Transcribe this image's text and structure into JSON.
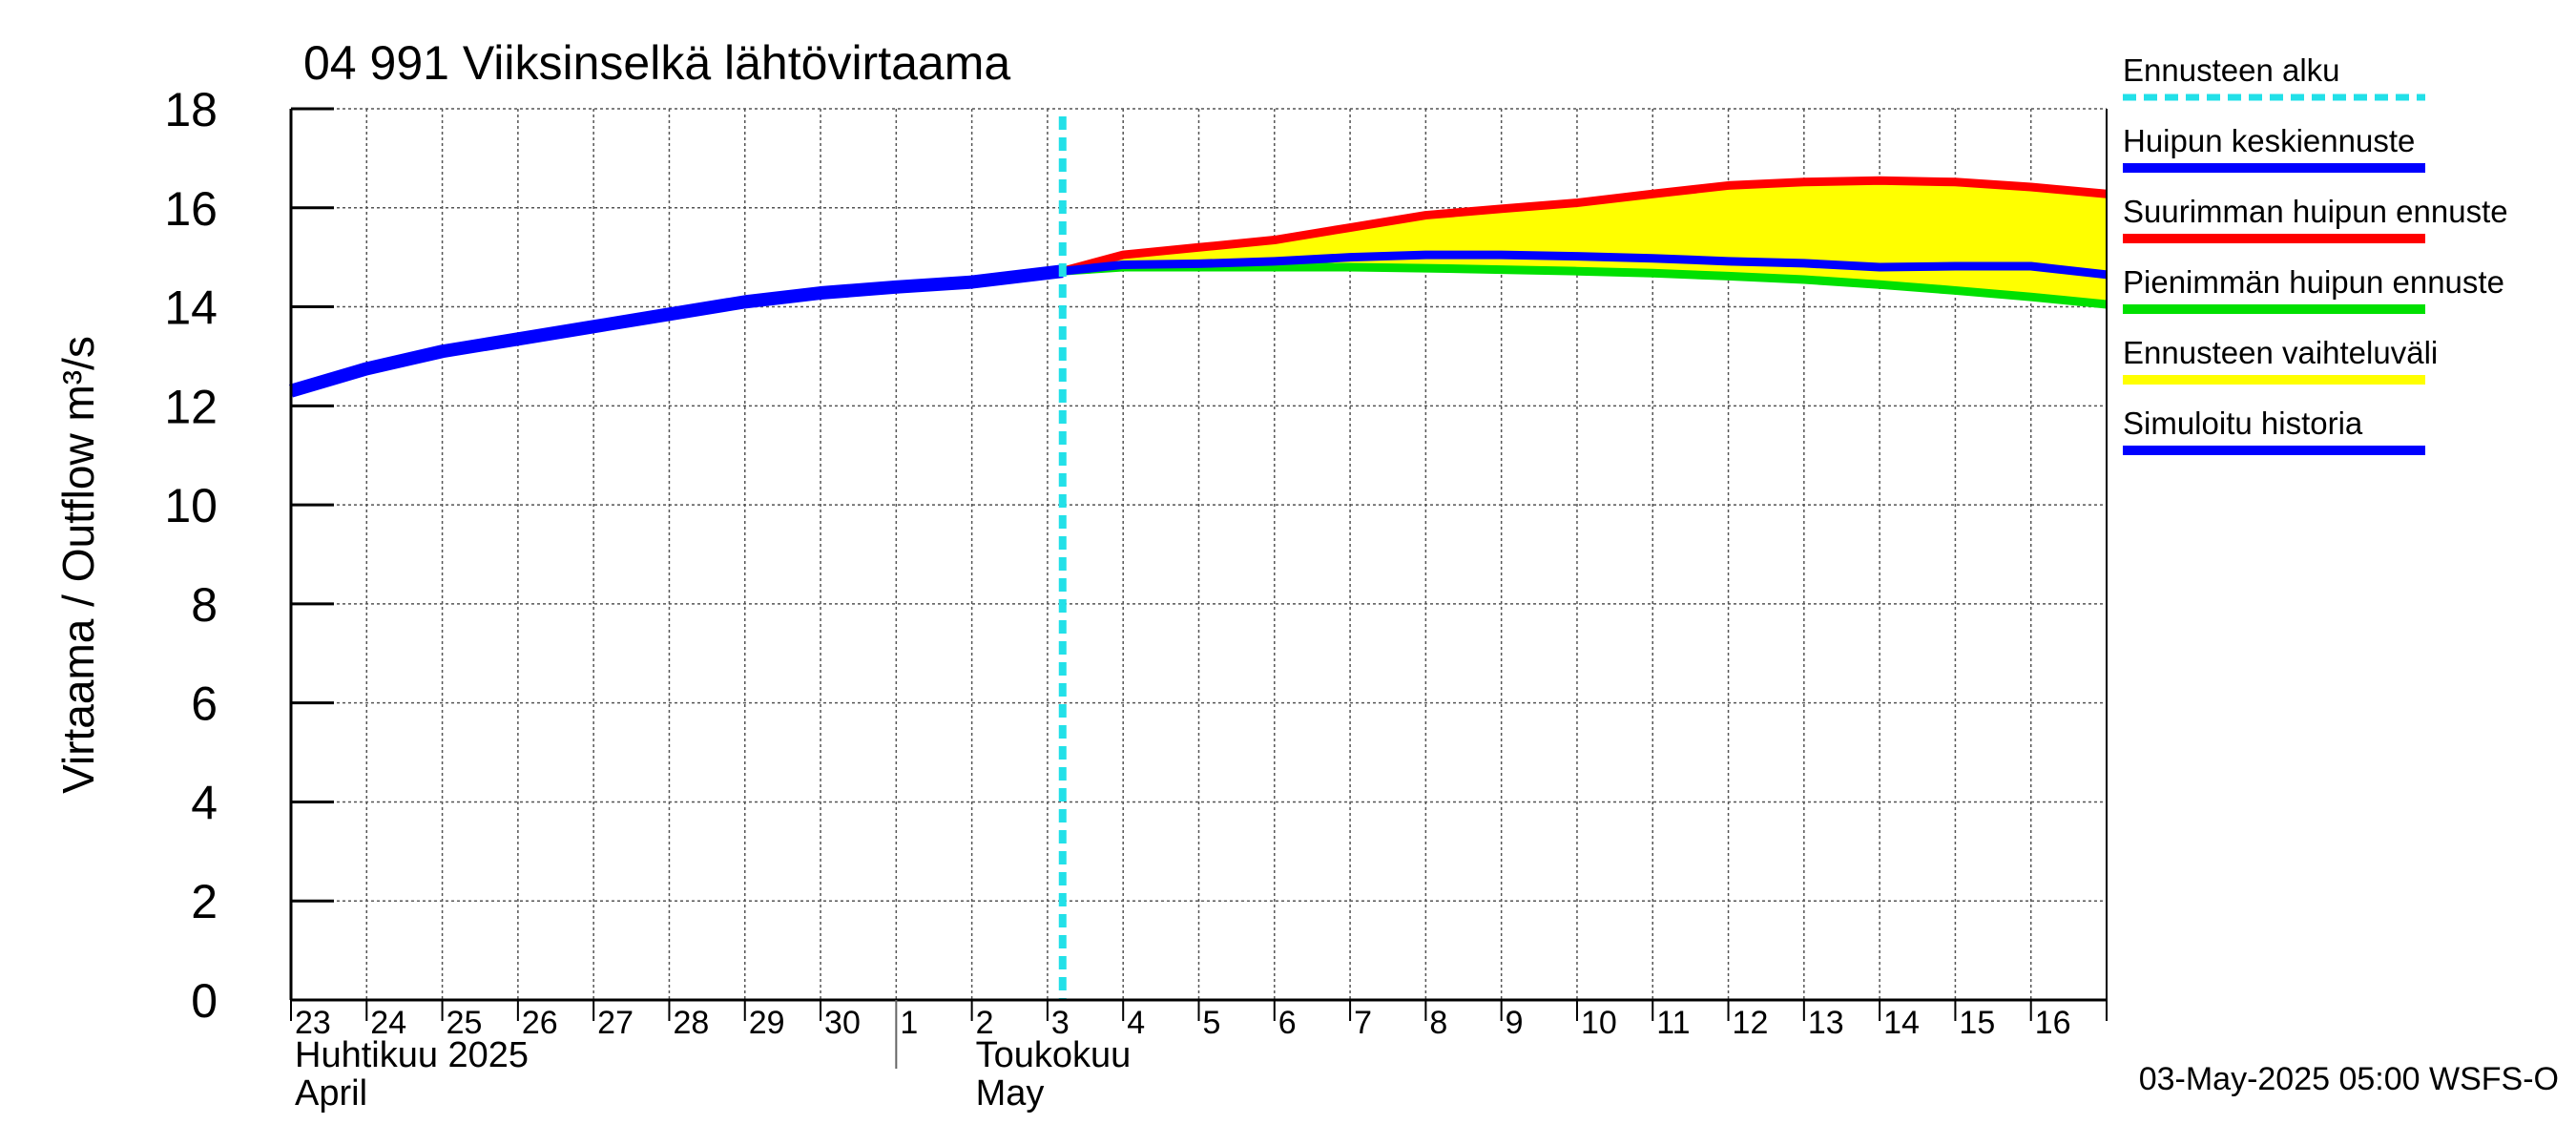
{
  "colors": {
    "forecast_start": "#22e0e8",
    "mean": "#0000ff",
    "max": "#ff0000",
    "min": "#00e000",
    "range": "#ffff00",
    "history": "#0000ff",
    "grid": "#555555",
    "frame": "#000000"
  },
  "chart_data": {
    "type": "line",
    "title": "04 991 Viiksinselkä lähtövirtaama",
    "ylabel": "Virtaama / Outflow    m³/s",
    "ylim": [
      0,
      18
    ],
    "yticks": [
      0,
      2,
      4,
      6,
      8,
      10,
      12,
      14,
      16,
      18
    ],
    "xlim": [
      0,
      24
    ],
    "day_labels": [
      "23",
      "24",
      "25",
      "26",
      "27",
      "28",
      "29",
      "30",
      "1",
      "2",
      "3",
      "4",
      "5",
      "6",
      "7",
      "8",
      "9",
      "10",
      "11",
      "12",
      "13",
      "14",
      "15",
      "16"
    ],
    "month_labels": [
      {
        "fi": "Huhtikuu  2025",
        "en": "April",
        "x": 0
      },
      {
        "fi": "Toukokuu",
        "en": "May",
        "x": 9
      }
    ],
    "month_boundary": 8,
    "forecast_start": 10.2,
    "series": [
      {
        "key": "history",
        "name": "Simuloitu historia",
        "x": [
          0,
          1,
          2,
          3,
          4,
          5,
          6,
          7,
          8,
          9,
          10.2
        ],
        "y": [
          12.3,
          12.75,
          13.1,
          13.35,
          13.6,
          13.85,
          14.1,
          14.28,
          14.4,
          14.5,
          14.72
        ]
      },
      {
        "key": "max",
        "name": "Suurimman huipun ennuste",
        "x": [
          10.2,
          11,
          12,
          13,
          14,
          15,
          16,
          17,
          18,
          19,
          20,
          21,
          22,
          23,
          24
        ],
        "y": [
          14.72,
          15.05,
          15.2,
          15.35,
          15.6,
          15.85,
          15.98,
          16.1,
          16.28,
          16.45,
          16.52,
          16.55,
          16.52,
          16.42,
          16.28
        ]
      },
      {
        "key": "mean",
        "name": "Huipun keskiennuste",
        "x": [
          10.2,
          11,
          12,
          13,
          14,
          15,
          16,
          17,
          18,
          19,
          20,
          21,
          22,
          23,
          24
        ],
        "y": [
          14.72,
          14.85,
          14.87,
          14.92,
          15.0,
          15.05,
          15.05,
          15.02,
          14.98,
          14.92,
          14.88,
          14.8,
          14.82,
          14.82,
          14.65
        ]
      },
      {
        "key": "min",
        "name": "Pienimmän huipun ennuste",
        "x": [
          10.2,
          11,
          12,
          13,
          14,
          15,
          16,
          17,
          18,
          19,
          20,
          21,
          22,
          23,
          24
        ],
        "y": [
          14.72,
          14.8,
          14.8,
          14.8,
          14.8,
          14.78,
          14.75,
          14.72,
          14.68,
          14.62,
          14.55,
          14.45,
          14.33,
          14.2,
          14.05
        ]
      }
    ],
    "legend": [
      {
        "label": "Ennusteen alku",
        "key": "forecast_start",
        "style": "dashed"
      },
      {
        "label": "Huipun keskiennuste",
        "key": "mean",
        "style": "solid"
      },
      {
        "label": "Suurimman huipun ennuste",
        "key": "max",
        "style": "solid"
      },
      {
        "label": "Pienimmän huipun ennuste",
        "key": "min",
        "style": "solid"
      },
      {
        "label": "Ennusteen vaihteluväli",
        "key": "range",
        "style": "solid"
      },
      {
        "label": "Simuloitu historia",
        "key": "history",
        "style": "solid"
      }
    ],
    "footer": "03-May-2025 05:00 WSFS-O"
  }
}
